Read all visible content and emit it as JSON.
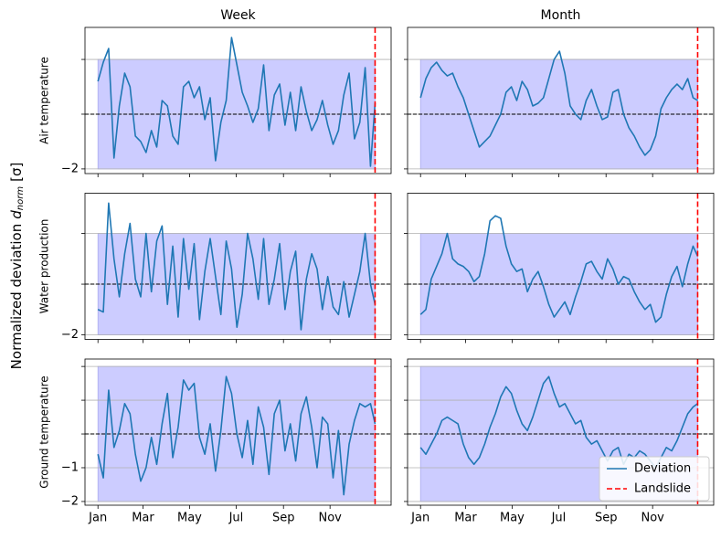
{
  "figure": {
    "ylabel": {
      "text": "Normalized deviation",
      "symbol": "d",
      "subscript": "norm",
      "unit": "[σ]"
    }
  },
  "chart_data": [
    {
      "type": "line",
      "title": "Week",
      "ylabel": "Air temperature",
      "x": [
        0,
        7,
        14,
        21,
        28,
        35,
        42,
        49,
        56,
        63,
        70,
        77,
        84,
        91,
        98,
        105,
        112,
        119,
        126,
        133,
        140,
        147,
        154,
        161,
        168,
        175,
        182,
        189,
        196,
        203,
        210,
        217,
        224,
        231,
        238,
        245,
        252,
        259,
        266,
        273,
        280,
        287,
        294,
        301,
        308,
        315,
        322,
        329,
        336,
        343,
        350,
        357,
        363
      ],
      "series": [
        {
          "color": "#1f77b4",
          "values": [
            1.2,
            1.9,
            2.4,
            -1.6,
            0.3,
            1.5,
            1.0,
            -0.8,
            -1.0,
            -1.4,
            -0.6,
            -1.2,
            0.5,
            0.3,
            -0.8,
            -1.1,
            1.0,
            1.2,
            0.6,
            1.0,
            -0.2,
            0.6,
            -1.7,
            -0.3,
            0.5,
            2.8,
            1.8,
            0.8,
            0.3,
            -0.3,
            0.2,
            1.8,
            -0.6,
            0.7,
            1.1,
            -0.4,
            0.8,
            -0.6,
            1.0,
            0.1,
            -0.6,
            -0.2,
            0.5,
            -0.4,
            -1.1,
            -0.6,
            0.7,
            1.5,
            -0.9,
            -0.3,
            1.7,
            -1.9,
            0.4
          ]
        }
      ],
      "xlim": [
        -17,
        384
      ],
      "xticks": [
        0,
        59,
        120,
        181,
        243,
        304
      ],
      "ylim": [
        -2.17,
        3.17
      ],
      "yticks": [
        {
          "value": -2,
          "label": "−2"
        },
        0,
        2
      ],
      "grid": "y",
      "shade": {
        "x": [
          0,
          363
        ],
        "y": [
          -2,
          2
        ],
        "color": "#ccccff"
      },
      "hline": 0,
      "vline": {
        "x": 363,
        "color": "#ff0000"
      }
    },
    {
      "type": "line",
      "title": "Month",
      "x": [
        0,
        7,
        14,
        21,
        28,
        35,
        42,
        49,
        56,
        63,
        70,
        77,
        84,
        91,
        98,
        105,
        112,
        119,
        126,
        133,
        140,
        147,
        154,
        161,
        168,
        175,
        182,
        189,
        196,
        203,
        210,
        217,
        224,
        231,
        238,
        245,
        252,
        259,
        266,
        273,
        280,
        287,
        294,
        301,
        308,
        315,
        322,
        329,
        336,
        343,
        350,
        357,
        363
      ],
      "series": [
        {
          "color": "#1f77b4",
          "values": [
            0.6,
            1.3,
            1.7,
            1.9,
            1.6,
            1.4,
            1.5,
            1.0,
            0.6,
            0.0,
            -0.6,
            -1.2,
            -1.0,
            -0.8,
            -0.4,
            0.0,
            0.8,
            1.0,
            0.5,
            1.2,
            0.9,
            0.3,
            0.4,
            0.6,
            1.3,
            2.0,
            2.3,
            1.5,
            0.3,
            0.0,
            -0.2,
            0.5,
            0.9,
            0.3,
            -0.2,
            -0.1,
            0.8,
            0.9,
            0.0,
            -0.5,
            -0.8,
            -1.2,
            -1.5,
            -1.3,
            -0.8,
            0.2,
            0.6,
            0.9,
            1.1,
            0.9,
            1.3,
            0.6,
            0.5
          ]
        }
      ],
      "xlim": [
        -17,
        384
      ],
      "xticks": [
        0,
        59,
        120,
        181,
        243,
        304
      ],
      "ylim": [
        -2.17,
        3.17
      ],
      "yticks": [
        -2,
        0,
        2
      ],
      "grid": "y",
      "shade": {
        "x": [
          0,
          363
        ],
        "y": [
          -2,
          2
        ],
        "color": "#ccccff"
      },
      "hline": 0,
      "vline": {
        "x": 363,
        "color": "#ff0000"
      }
    },
    {
      "type": "line",
      "ylabel": "Water production",
      "x": [
        0,
        7,
        14,
        21,
        28,
        35,
        42,
        49,
        56,
        63,
        70,
        77,
        84,
        91,
        98,
        105,
        112,
        119,
        126,
        133,
        140,
        147,
        154,
        161,
        168,
        175,
        182,
        189,
        196,
        203,
        210,
        217,
        224,
        231,
        238,
        245,
        252,
        259,
        266,
        273,
        280,
        287,
        294,
        301,
        308,
        315,
        322,
        329,
        336,
        343,
        350,
        357,
        363
      ],
      "series": [
        {
          "color": "#1f77b4",
          "values": [
            -1.0,
            -1.1,
            3.2,
            1.0,
            -0.5,
            1.2,
            2.4,
            0.2,
            -0.5,
            2.0,
            -0.3,
            1.7,
            2.3,
            -0.8,
            1.5,
            -1.3,
            1.8,
            -0.2,
            1.6,
            -1.4,
            0.5,
            1.8,
            0.3,
            -1.2,
            1.7,
            0.6,
            -1.7,
            -0.4,
            2.0,
            1.0,
            -0.6,
            1.8,
            -0.8,
            0.2,
            1.6,
            -1.0,
            0.5,
            1.3,
            -1.8,
            0.2,
            1.2,
            0.6,
            -1.0,
            0.3,
            -0.9,
            -1.2,
            0.1,
            -1.3,
            -0.4,
            0.5,
            2.0,
            0.0,
            -0.8
          ]
        }
      ],
      "xlim": [
        -17,
        384
      ],
      "xticks": [
        0,
        59,
        120,
        181,
        243,
        304
      ],
      "ylim": [
        -2.18,
        3.59
      ],
      "yticks": [
        {
          "value": -2,
          "label": "−2"
        },
        0,
        2
      ],
      "grid": "y",
      "shade": {
        "x": [
          0,
          363
        ],
        "y": [
          -2,
          2
        ],
        "color": "#ccccff"
      },
      "hline": 0,
      "vline": {
        "x": 363,
        "color": "#ff0000"
      }
    },
    {
      "type": "line",
      "x": [
        0,
        7,
        14,
        21,
        28,
        35,
        42,
        49,
        56,
        63,
        70,
        77,
        84,
        91,
        98,
        105,
        112,
        119,
        126,
        133,
        140,
        147,
        154,
        161,
        168,
        175,
        182,
        189,
        196,
        203,
        210,
        217,
        224,
        231,
        238,
        245,
        252,
        259,
        266,
        273,
        280,
        287,
        294,
        301,
        308,
        315,
        322,
        329,
        336,
        343,
        350,
        357,
        363
      ],
      "series": [
        {
          "color": "#1f77b4",
          "values": [
            -1.2,
            -1.0,
            0.2,
            0.7,
            1.2,
            2.0,
            1.0,
            0.8,
            0.7,
            0.5,
            0.1,
            0.3,
            1.2,
            2.5,
            2.7,
            2.6,
            1.5,
            0.8,
            0.5,
            0.6,
            -0.3,
            0.2,
            0.5,
            -0.1,
            -0.8,
            -1.3,
            -1.0,
            -0.7,
            -1.2,
            -0.5,
            0.1,
            0.8,
            0.9,
            0.5,
            0.2,
            1.0,
            0.6,
            0.0,
            0.3,
            0.2,
            -0.3,
            -0.7,
            -1.0,
            -0.8,
            -1.5,
            -1.3,
            -0.4,
            0.3,
            0.7,
            -0.1,
            0.8,
            1.5,
            1.1
          ]
        }
      ],
      "xlim": [
        -17,
        384
      ],
      "xticks": [
        0,
        59,
        120,
        181,
        243,
        304
      ],
      "ylim": [
        -2.18,
        3.59
      ],
      "yticks": [
        -2,
        0,
        2
      ],
      "grid": "y",
      "shade": {
        "x": [
          0,
          363
        ],
        "y": [
          -2,
          2
        ],
        "color": "#ccccff"
      },
      "hline": 0,
      "vline": {
        "x": 363,
        "color": "#ff0000"
      }
    },
    {
      "type": "line",
      "ylabel": "Ground temperature",
      "x": [
        0,
        7,
        14,
        21,
        28,
        35,
        42,
        49,
        56,
        63,
        70,
        77,
        84,
        91,
        98,
        105,
        112,
        119,
        126,
        133,
        140,
        147,
        154,
        161,
        168,
        175,
        182,
        189,
        196,
        203,
        210,
        217,
        224,
        231,
        238,
        245,
        252,
        259,
        266,
        273,
        280,
        287,
        294,
        301,
        308,
        315,
        322,
        329,
        336,
        343,
        350,
        357,
        363
      ],
      "series": [
        {
          "color": "#1f77b4",
          "values": [
            -0.6,
            -1.3,
            1.3,
            -0.4,
            0.1,
            0.9,
            0.6,
            -0.6,
            -1.4,
            -1.0,
            -0.1,
            -0.9,
            0.3,
            1.2,
            -0.7,
            0.2,
            1.6,
            1.3,
            1.5,
            -0.1,
            -0.6,
            0.3,
            -1.1,
            0.1,
            1.7,
            1.2,
            0.0,
            -0.7,
            0.4,
            -0.9,
            0.8,
            0.2,
            -1.2,
            0.6,
            1.0,
            -0.5,
            0.3,
            -0.8,
            0.6,
            1.1,
            0.2,
            -1.0,
            0.5,
            0.3,
            -1.3,
            0.1,
            -1.8,
            -0.3,
            0.4,
            0.9,
            0.8,
            0.9,
            0.3
          ]
        }
      ],
      "xlim": [
        -17,
        384
      ],
      "xticks": [
        {
          "value": 0,
          "label": "Jan"
        },
        {
          "value": 59,
          "label": "Mar"
        },
        {
          "value": 120,
          "label": "May"
        },
        {
          "value": 181,
          "label": "Jul"
        },
        {
          "value": 243,
          "label": "Sep"
        },
        {
          "value": 304,
          "label": "Nov"
        }
      ],
      "ylim": [
        -2.11,
        2.22
      ],
      "yticks": [
        {
          "value": -2,
          "label": "−2"
        },
        {
          "value": -1,
          "label": "−1"
        },
        0,
        1,
        2
      ],
      "grid": "y",
      "shade": {
        "x": [
          0,
          363
        ],
        "y": [
          -2,
          2
        ],
        "color": "#ccccff"
      },
      "hline": 0,
      "vline": {
        "x": 363,
        "color": "#ff0000"
      }
    },
    {
      "type": "line",
      "x": [
        0,
        7,
        14,
        21,
        28,
        35,
        42,
        49,
        56,
        63,
        70,
        77,
        84,
        91,
        98,
        105,
        112,
        119,
        126,
        133,
        140,
        147,
        154,
        161,
        168,
        175,
        182,
        189,
        196,
        203,
        210,
        217,
        224,
        231,
        238,
        245,
        252,
        259,
        266,
        273,
        280,
        287,
        294,
        301,
        308,
        315,
        322,
        329,
        336,
        343,
        350,
        357,
        363
      ],
      "series": [
        {
          "name": "Deviation",
          "color": "#1f77b4",
          "values": [
            -0.4,
            -0.6,
            -0.3,
            0.0,
            0.4,
            0.5,
            0.4,
            0.3,
            -0.3,
            -0.7,
            -0.9,
            -0.7,
            -0.3,
            0.2,
            0.6,
            1.1,
            1.4,
            1.2,
            0.7,
            0.3,
            0.1,
            0.5,
            1.0,
            1.5,
            1.7,
            1.2,
            0.8,
            0.9,
            0.6,
            0.3,
            0.4,
            -0.1,
            -0.3,
            -0.2,
            -0.5,
            -0.8,
            -0.5,
            -0.4,
            -0.9,
            -0.6,
            -0.7,
            -0.5,
            -0.6,
            -0.8,
            -1.0,
            -0.7,
            -0.4,
            -0.5,
            -0.2,
            0.2,
            0.6,
            0.8,
            0.9
          ]
        }
      ],
      "xlim": [
        -17,
        384
      ],
      "xticks": [
        {
          "value": 0,
          "label": "Jan"
        },
        {
          "value": 59,
          "label": "Mar"
        },
        {
          "value": 120,
          "label": "May"
        },
        {
          "value": 181,
          "label": "Jul"
        },
        {
          "value": 243,
          "label": "Sep"
        },
        {
          "value": 304,
          "label": "Nov"
        }
      ],
      "ylim": [
        -2.11,
        2.22
      ],
      "yticks": [
        -2,
        -1,
        0,
        1,
        2
      ],
      "grid": "y",
      "shade": {
        "x": [
          0,
          363
        ],
        "y": [
          -2,
          2
        ],
        "color": "#ccccff"
      },
      "hline": 0,
      "vline": {
        "name": "Landslide",
        "x": 363,
        "color": "#ff0000"
      },
      "legend": "lower right"
    }
  ]
}
